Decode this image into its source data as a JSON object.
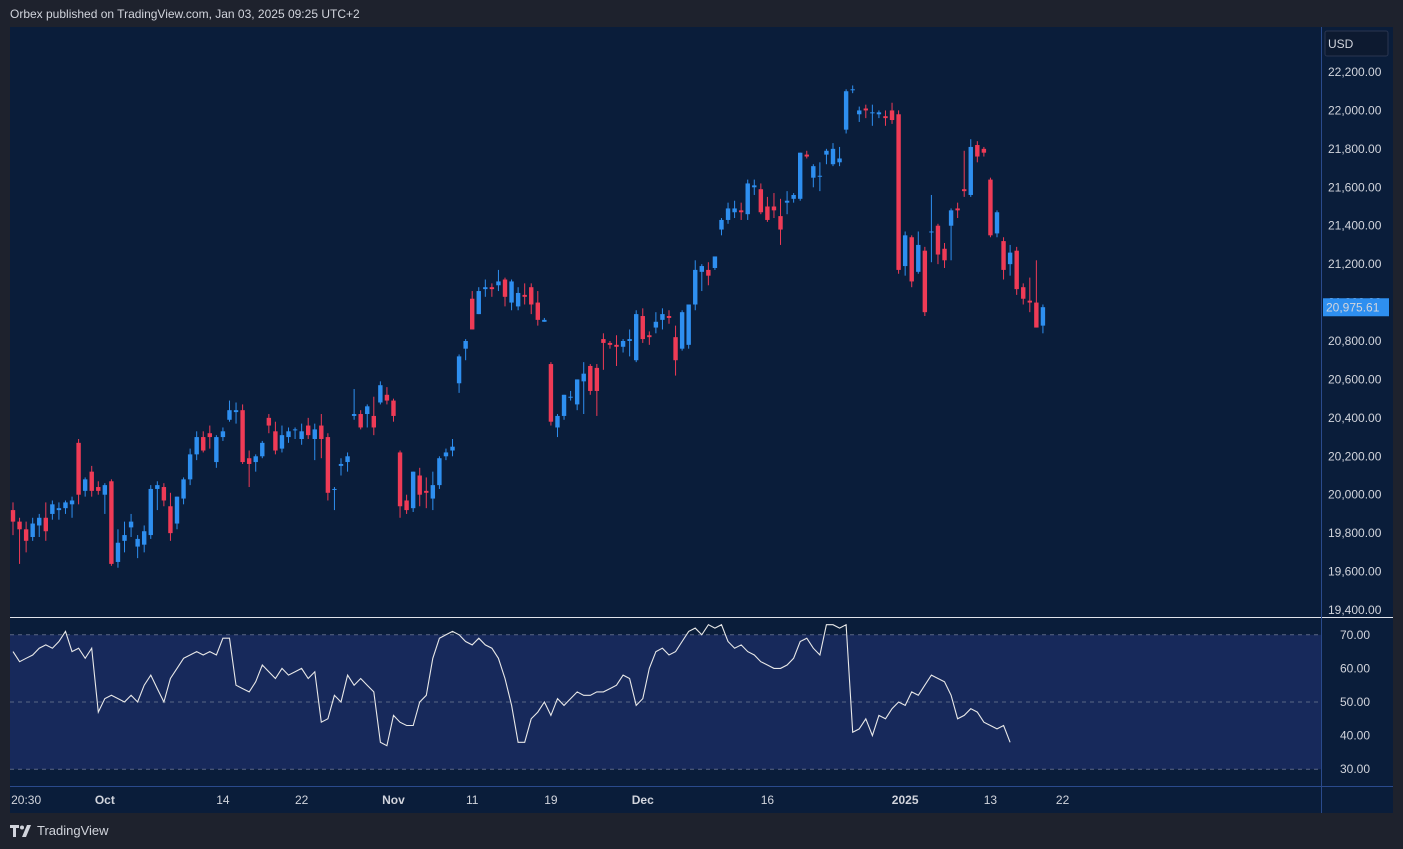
{
  "header": {
    "publisher_line": "Orbex published on TradingView.com, Jan 03, 2025 09:25 UTC+2"
  },
  "footer": {
    "brand": "TradingView",
    "logo_icon": "tradingview-logo-icon"
  },
  "currency_button": {
    "label": "USD"
  },
  "colors": {
    "background": "#0a1d3a",
    "up": "#2e8ff0",
    "down": "#ef3b56",
    "rsi_line": "#e8e8e8",
    "rsi_band": "#17295b",
    "price_tag": "#2e8ff0"
  },
  "chart_data": [
    {
      "type": "candlestick",
      "price_axis": {
        "ticks": [
          "22,200.00",
          "22,000.00",
          "21,800.00",
          "21,600.00",
          "21,400.00",
          "21,200.00",
          "21,000.00",
          "20,800.00",
          "20,600.00",
          "20,400.00",
          "20,200.00",
          "20,000.00",
          "19,800.00",
          "19,600.00",
          "19,400.00"
        ],
        "tick_values": [
          22200,
          22000,
          21800,
          21600,
          21400,
          21200,
          21000,
          20800,
          20600,
          20400,
          20200,
          20000,
          19800,
          19600,
          19400
        ],
        "ylim": [
          19400,
          22200
        ]
      },
      "last_price": {
        "value": 20975.61,
        "label": "20,975.61"
      },
      "time_axis": [
        {
          "label": "20:30",
          "index": 2,
          "bold": false
        },
        {
          "label": "Oct",
          "index": 14,
          "bold": true
        },
        {
          "label": "14",
          "index": 32,
          "bold": false
        },
        {
          "label": "22",
          "index": 44,
          "bold": false
        },
        {
          "label": "Nov",
          "index": 58,
          "bold": true
        },
        {
          "label": "11",
          "index": 70,
          "bold": false
        },
        {
          "label": "19",
          "index": 82,
          "bold": false
        },
        {
          "label": "Dec",
          "index": 96,
          "bold": true
        },
        {
          "label": "16",
          "index": 115,
          "bold": false
        },
        {
          "label": "2025",
          "index": 136,
          "bold": true
        },
        {
          "label": "13",
          "index": 149,
          "bold": false
        },
        {
          "label": "22",
          "index": 160,
          "bold": false
        }
      ],
      "candles": [
        [
          19920,
          19960,
          19790,
          19860
        ],
        [
          19860,
          19880,
          19640,
          19820
        ],
        [
          19820,
          19860,
          19700,
          19760
        ],
        [
          19780,
          19880,
          19760,
          19850
        ],
        [
          19840,
          19900,
          19780,
          19880
        ],
        [
          19880,
          19960,
          19760,
          19810
        ],
        [
          19900,
          19970,
          19870,
          19950
        ],
        [
          19920,
          19960,
          19870,
          19930
        ],
        [
          19930,
          19970,
          19900,
          19960
        ],
        [
          19950,
          19990,
          19880,
          19970
        ],
        [
          20270,
          20290,
          19950,
          20000
        ],
        [
          20020,
          20090,
          19990,
          20080
        ],
        [
          20120,
          20150,
          19990,
          20020
        ],
        [
          20040,
          20070,
          20000,
          20020
        ],
        [
          20000,
          20060,
          19900,
          20050
        ],
        [
          20070,
          20080,
          19630,
          19640
        ],
        [
          19650,
          19820,
          19620,
          19750
        ],
        [
          19760,
          19860,
          19700,
          19790
        ],
        [
          19830,
          19900,
          19780,
          19860
        ],
        [
          19730,
          19790,
          19670,
          19770
        ],
        [
          19740,
          19840,
          19700,
          19810
        ],
        [
          19790,
          20050,
          19770,
          20030
        ],
        [
          20030,
          20070,
          19920,
          20050
        ],
        [
          20040,
          20060,
          19940,
          19970
        ],
        [
          19940,
          20010,
          19760,
          19800
        ],
        [
          19850,
          19990,
          19820,
          19990
        ],
        [
          19980,
          20090,
          19950,
          20080
        ],
        [
          20080,
          20240,
          20050,
          20210
        ],
        [
          20210,
          20330,
          20180,
          20300
        ],
        [
          20300,
          20330,
          20220,
          20230
        ],
        [
          20320,
          20360,
          20240,
          20300
        ],
        [
          20170,
          20310,
          20140,
          20300
        ],
        [
          20300,
          20350,
          20280,
          20330
        ],
        [
          20390,
          20490,
          20380,
          20440
        ],
        [
          20430,
          20480,
          20370,
          20440
        ],
        [
          20440,
          20470,
          20160,
          20170
        ],
        [
          20190,
          20230,
          20040,
          20160
        ],
        [
          20170,
          20210,
          20120,
          20200
        ],
        [
          20200,
          20280,
          20190,
          20270
        ],
        [
          20400,
          20420,
          20320,
          20360
        ],
        [
          20330,
          20380,
          20210,
          20230
        ],
        [
          20240,
          20360,
          20220,
          20310
        ],
        [
          20300,
          20350,
          20270,
          20330
        ],
        [
          20340,
          20350,
          20290,
          20340
        ],
        [
          20290,
          20370,
          20260,
          20330
        ],
        [
          20360,
          20400,
          20290,
          20310
        ],
        [
          20290,
          20370,
          20180,
          20340
        ],
        [
          20360,
          20420,
          20190,
          20290
        ],
        [
          20300,
          20320,
          19970,
          20010
        ],
        [
          20030,
          20040,
          19920,
          20030
        ],
        [
          20150,
          20190,
          20100,
          20160
        ],
        [
          20170,
          20220,
          20120,
          20200
        ],
        [
          20410,
          20550,
          20390,
          20420
        ],
        [
          20420,
          20440,
          20340,
          20350
        ],
        [
          20420,
          20470,
          20350,
          20460
        ],
        [
          20410,
          20510,
          20310,
          20350
        ],
        [
          20480,
          20590,
          20470,
          20570
        ],
        [
          20520,
          20560,
          20470,
          20490
        ],
        [
          20490,
          20500,
          20380,
          20410
        ],
        [
          20220,
          20230,
          19880,
          19940
        ],
        [
          19970,
          20000,
          19900,
          19920
        ],
        [
          19930,
          20120,
          19910,
          20120
        ],
        [
          20100,
          20140,
          19940,
          20000
        ],
        [
          20020,
          20090,
          19930,
          20010
        ],
        [
          19980,
          20120,
          19920,
          20050
        ],
        [
          20050,
          20200,
          20030,
          20190
        ],
        [
          20200,
          20240,
          20180,
          20220
        ],
        [
          20230,
          20290,
          20200,
          20250
        ],
        [
          20580,
          20730,
          20530,
          20720
        ],
        [
          20760,
          20810,
          20700,
          20800
        ],
        [
          21020,
          21060,
          20860,
          20860
        ],
        [
          20940,
          21080,
          20940,
          21060
        ],
        [
          21070,
          21120,
          21030,
          21080
        ],
        [
          21080,
          21100,
          21030,
          21070
        ],
        [
          21090,
          21170,
          21060,
          21110
        ],
        [
          21120,
          21130,
          20980,
          21030
        ],
        [
          21000,
          21120,
          20960,
          21110
        ],
        [
          20980,
          21080,
          20960,
          21050
        ],
        [
          21040,
          21100,
          20990,
          21030
        ],
        [
          21080,
          21100,
          20940,
          20990
        ],
        [
          21000,
          21060,
          20880,
          20910
        ],
        [
          20900,
          20920,
          20900,
          20910
        ],
        [
          20680,
          20690,
          20360,
          20380
        ],
        [
          20350,
          20420,
          20300,
          20410
        ],
        [
          20410,
          20520,
          20390,
          20520
        ],
        [
          20510,
          20540,
          20490,
          20510
        ],
        [
          20470,
          20600,
          20440,
          20600
        ],
        [
          20590,
          20690,
          20420,
          20630
        ],
        [
          20670,
          20680,
          20520,
          20540
        ],
        [
          20660,
          20680,
          20410,
          20540
        ],
        [
          20810,
          20840,
          20650,
          20790
        ],
        [
          20790,
          20800,
          20760,
          20780
        ],
        [
          20780,
          20830,
          20670,
          20770
        ],
        [
          20770,
          20810,
          20740,
          20800
        ],
        [
          20800,
          20860,
          20720,
          20810
        ],
        [
          20700,
          20960,
          20690,
          20940
        ],
        [
          20930,
          20970,
          20790,
          20810
        ],
        [
          20830,
          20850,
          20780,
          20820
        ],
        [
          20870,
          20950,
          20840,
          20900
        ],
        [
          20910,
          20970,
          20860,
          20940
        ],
        [
          20930,
          20960,
          20890,
          20920
        ],
        [
          20820,
          20880,
          20620,
          20700
        ],
        [
          20760,
          20960,
          20750,
          20950
        ],
        [
          20780,
          20990,
          20760,
          20990
        ],
        [
          20990,
          21220,
          20960,
          21170
        ],
        [
          21160,
          21200,
          21060,
          21190
        ],
        [
          21170,
          21210,
          21090,
          21140
        ],
        [
          21180,
          21240,
          21170,
          21240
        ],
        [
          21380,
          21440,
          21350,
          21430
        ],
        [
          21430,
          21520,
          21410,
          21490
        ],
        [
          21470,
          21530,
          21440,
          21490
        ],
        [
          21480,
          21520,
          21430,
          21470
        ],
        [
          21460,
          21640,
          21430,
          21620
        ],
        [
          21600,
          21640,
          21560,
          21610
        ],
        [
          21590,
          21620,
          21460,
          21470
        ],
        [
          21500,
          21550,
          21420,
          21430
        ],
        [
          21500,
          21570,
          21440,
          21480
        ],
        [
          21450,
          21540,
          21300,
          21380
        ],
        [
          21520,
          21580,
          21460,
          21530
        ],
        [
          21540,
          21570,
          21520,
          21560
        ],
        [
          21540,
          21780,
          21530,
          21780
        ],
        [
          21770,
          21790,
          21750,
          21760
        ],
        [
          21650,
          21720,
          21600,
          21710
        ],
        [
          21660,
          21730,
          21580,
          21660
        ],
        [
          21770,
          21800,
          21720,
          21790
        ],
        [
          21720,
          21830,
          21710,
          21800
        ],
        [
          21730,
          21810,
          21710,
          21750
        ],
        [
          21900,
          22110,
          21880,
          22100
        ],
        [
          22110,
          22130,
          22090,
          22110
        ],
        [
          21980,
          22020,
          21940,
          22000
        ],
        [
          22010,
          22030,
          21960,
          22000
        ],
        [
          21990,
          22030,
          21920,
          21990
        ],
        [
          21980,
          22000,
          21960,
          21990
        ],
        [
          21970,
          22000,
          21920,
          21960
        ],
        [
          22000,
          22040,
          21930,
          21950
        ],
        [
          21980,
          22000,
          21150,
          21170
        ],
        [
          21190,
          21370,
          21140,
          21350
        ],
        [
          21340,
          21350,
          21080,
          21110
        ],
        [
          21160,
          21370,
          21150,
          21300
        ],
        [
          21270,
          21290,
          20930,
          20950
        ],
        [
          21370,
          21560,
          21210,
          21370
        ],
        [
          21400,
          21410,
          21200,
          21250
        ],
        [
          21280,
          21310,
          21180,
          21220
        ],
        [
          21400,
          21490,
          21220,
          21480
        ],
        [
          21490,
          21520,
          21440,
          21480
        ],
        [
          21590,
          21790,
          21550,
          21580
        ],
        [
          21560,
          21850,
          21550,
          21810
        ],
        [
          21820,
          21840,
          21730,
          21760
        ],
        [
          21800,
          21810,
          21760,
          21780
        ],
        [
          21640,
          21650,
          21340,
          21350
        ],
        [
          21360,
          21480,
          21340,
          21470
        ],
        [
          21320,
          21340,
          21120,
          21170
        ],
        [
          21200,
          21300,
          21140,
          21260
        ],
        [
          21270,
          21290,
          21040,
          21070
        ],
        [
          21080,
          21100,
          20990,
          21020
        ],
        [
          21010,
          21130,
          20950,
          21000
        ],
        [
          21000,
          21220,
          20870,
          20870
        ],
        [
          20880,
          20990,
          20840,
          20976
        ]
      ]
    },
    {
      "type": "line",
      "name": "RSI",
      "axis_ticks": [
        "70.00",
        "60.00",
        "50.00",
        "40.00",
        "30.00"
      ],
      "tick_values": [
        70,
        60,
        50,
        40,
        30
      ],
      "ylim": [
        25,
        75
      ],
      "bands": {
        "upper": 70,
        "middle": 50,
        "lower": 30
      },
      "values": [
        65,
        62,
        63,
        64,
        66,
        67,
        66,
        68,
        71,
        65,
        66,
        63,
        66,
        47,
        51,
        52,
        51,
        50,
        52,
        50,
        55,
        58,
        54,
        50,
        57,
        60,
        63,
        64,
        65,
        64,
        65,
        64,
        69,
        69,
        55,
        54,
        53,
        56,
        61,
        59,
        57,
        60,
        58,
        59,
        60,
        57,
        59,
        44,
        45,
        52,
        50,
        58,
        55,
        57,
        55,
        53,
        38,
        37,
        46,
        44,
        43,
        43,
        50,
        52,
        63,
        69,
        70,
        71,
        70,
        68,
        67,
        69,
        67,
        66,
        63,
        57,
        49,
        38,
        38,
        45,
        47,
        50,
        46,
        51,
        49,
        51,
        53,
        52,
        52,
        53,
        53,
        54,
        55,
        58,
        57,
        49,
        51,
        60,
        65,
        66,
        64,
        65,
        68,
        71,
        72,
        70,
        73,
        72,
        73,
        68,
        66,
        67,
        65,
        64,
        62,
        61,
        60,
        60,
        61,
        63,
        68,
        69,
        66,
        64,
        73,
        73,
        72,
        73,
        41,
        42,
        45,
        40,
        46,
        45,
        48,
        50,
        49,
        53,
        52,
        55,
        58,
        57,
        56,
        52,
        45,
        46,
        48,
        47,
        44,
        43,
        42,
        43,
        38
      ]
    }
  ]
}
